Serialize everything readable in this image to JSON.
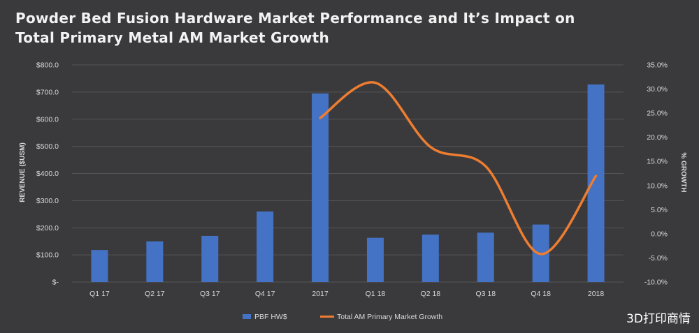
{
  "chart_data": {
    "type": "bar",
    "title_line1": "Powder Bed Fusion Hardware Market Performance and It’s Impact on",
    "title_line2": "Total Primary Metal AM Market Growth",
    "categories": [
      "Q1 17",
      "Q2 17",
      "Q3 17",
      "Q4 17",
      "2017",
      "Q1 18",
      "Q2 18",
      "Q3 18",
      "Q4 18",
      "2018"
    ],
    "ylabel": "REVENUE ($USM)",
    "y2label": "% GROWTH",
    "ylim": [
      0,
      800
    ],
    "y2lim": [
      -10,
      35
    ],
    "y_ticks": [
      "$-",
      "$100.0",
      "$200.0",
      "$300.0",
      "$400.0",
      "$500.0",
      "$600.0",
      "$700.0",
      "$800.0"
    ],
    "y2_ticks": [
      "-10.0%",
      "-5.0%",
      "0.0%",
      "5.0%",
      "10.0%",
      "15.0%",
      "20.0%",
      "25.0%",
      "30.0%",
      "35.0%"
    ],
    "grid": true,
    "legend_position": "bottom",
    "series": [
      {
        "name": "PBF HW$",
        "type": "bar",
        "axis": "left",
        "color": "#4472c4",
        "values": [
          118,
          150,
          170,
          260,
          695,
          163,
          175,
          182,
          212,
          728
        ]
      },
      {
        "name": "Total AM Primary Market Growth",
        "type": "line",
        "axis": "right",
        "color": "#ed7d31",
        "values": [
          null,
          null,
          null,
          null,
          24.0,
          31.3,
          18.0,
          14.0,
          -4.2,
          12.0
        ]
      }
    ]
  },
  "watermark": "3D打印商情"
}
